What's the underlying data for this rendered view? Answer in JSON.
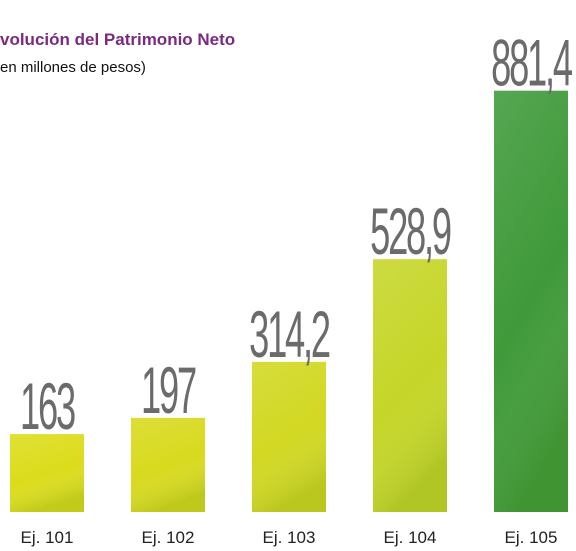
{
  "chart_data": {
    "type": "bar",
    "title": "volución del Patrimonio Neto",
    "subtitle": "en millones de pesos)",
    "categories": [
      "Ej. 101",
      "Ej. 102",
      "Ej. 103",
      "Ej. 104",
      "Ej. 105"
    ],
    "values": [
      163,
      197,
      314.2,
      528.9,
      881.4
    ],
    "value_labels": [
      "163",
      "197",
      "314,2",
      "528,9",
      "881,4"
    ],
    "colors": [
      "#dcdc1c",
      "#d8da1e",
      "#d2d822",
      "#c6d628",
      "#3f9a3a"
    ]
  }
}
